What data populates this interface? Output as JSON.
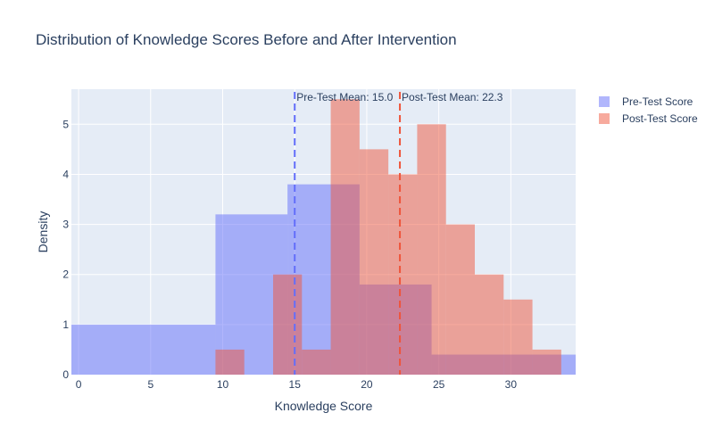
{
  "chart_data": {
    "type": "bar",
    "title": "Distribution of Knowledge Scores Before and After Intervention",
    "xlabel": "Knowledge Score",
    "ylabel": "Density",
    "xlim": [
      -0.5,
      34.5
    ],
    "ylim": [
      0,
      5.7
    ],
    "xticks": [
      0,
      5,
      10,
      15,
      20,
      25,
      30
    ],
    "yticks": [
      0,
      1,
      2,
      3,
      4,
      5
    ],
    "grid": true,
    "legend_position": "top-right",
    "series": [
      {
        "name": "Pre-Test Score",
        "color": "#636efa",
        "opacity": 0.5,
        "bins": [
          {
            "x0": -0.5,
            "x1": 9.5,
            "y": 1.0
          },
          {
            "x0": 9.5,
            "x1": 14.5,
            "y": 3.2
          },
          {
            "x0": 14.5,
            "x1": 19.5,
            "y": 3.8
          },
          {
            "x0": 19.5,
            "x1": 24.5,
            "y": 1.8
          },
          {
            "x0": 24.5,
            "x1": 33.5,
            "y": 0.4
          },
          {
            "x0": 33.5,
            "x1": 34.5,
            "y": 0.4
          }
        ]
      },
      {
        "name": "Post-Test Score",
        "color": "#ef553b",
        "opacity": 0.5,
        "bins": [
          {
            "x0": 9.5,
            "x1": 11.5,
            "y": 0.5
          },
          {
            "x0": 13.5,
            "x1": 15.5,
            "y": 2.0
          },
          {
            "x0": 15.5,
            "x1": 17.5,
            "y": 0.5
          },
          {
            "x0": 17.5,
            "x1": 19.5,
            "y": 5.5
          },
          {
            "x0": 19.5,
            "x1": 21.5,
            "y": 4.5
          },
          {
            "x0": 21.5,
            "x1": 23.5,
            "y": 4.0
          },
          {
            "x0": 23.5,
            "x1": 25.5,
            "y": 5.0
          },
          {
            "x0": 25.5,
            "x1": 27.5,
            "y": 3.0
          },
          {
            "x0": 27.5,
            "x1": 29.5,
            "y": 2.0
          },
          {
            "x0": 29.5,
            "x1": 31.5,
            "y": 1.5
          },
          {
            "x0": 31.5,
            "x1": 33.5,
            "y": 0.5
          }
        ]
      }
    ],
    "mean_lines": [
      {
        "x": 15.0,
        "label": "Pre-Test Mean: 15.0",
        "color": "#636efa"
      },
      {
        "x": 22.3,
        "label": "Post-Test Mean: 22.3",
        "color": "#ef553b"
      }
    ]
  }
}
